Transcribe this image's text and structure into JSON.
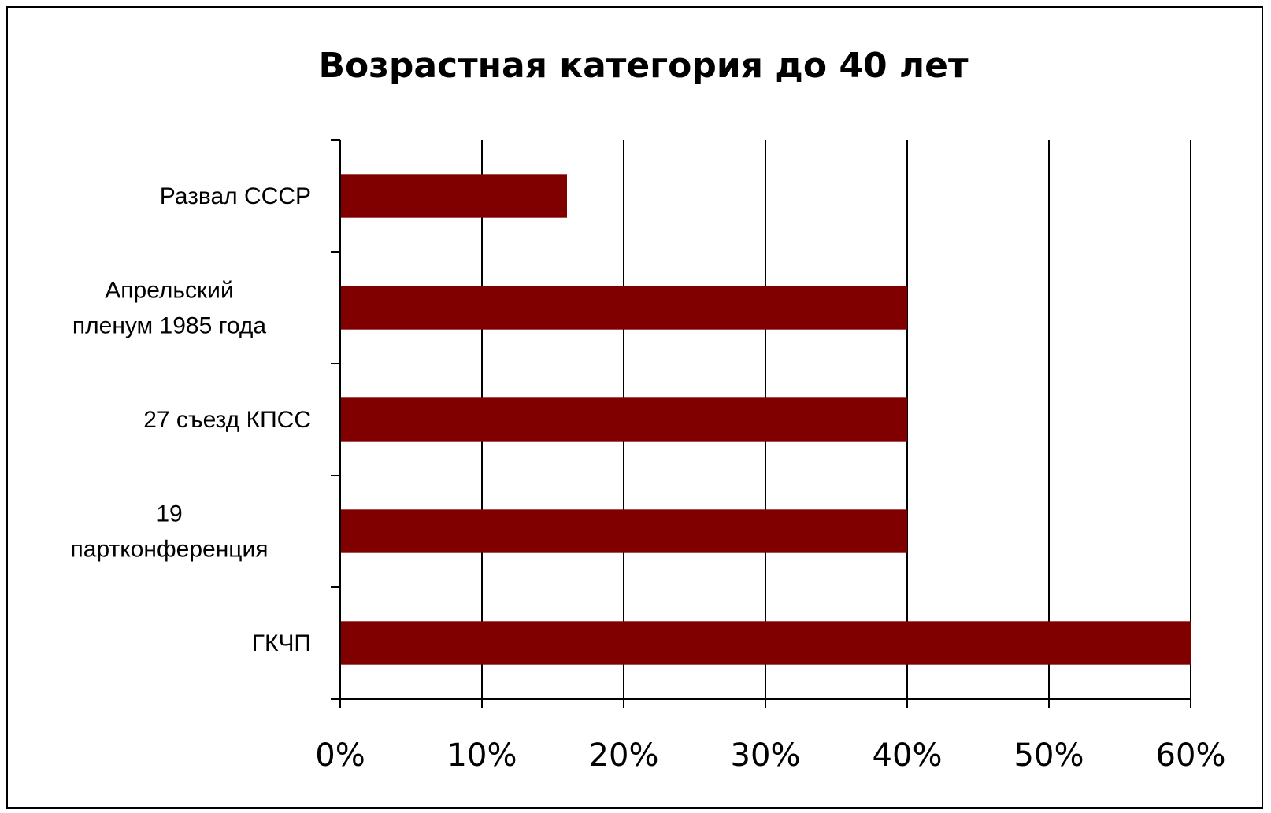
{
  "chart_data": {
    "type": "bar",
    "orientation": "horizontal",
    "title": "Возрастная категория до 40 лет",
    "categories": [
      [
        "Развал СССР"
      ],
      [
        "Апрельский",
        "пленум 1985 года"
      ],
      [
        "27 съезд КПСС"
      ],
      [
        "19",
        "партконференция"
      ],
      [
        "ГКЧП"
      ]
    ],
    "values": [
      16,
      40,
      40,
      40,
      60
    ],
    "xlim": [
      0,
      60
    ],
    "xticks": [
      0,
      10,
      20,
      30,
      40,
      50,
      60
    ],
    "tick_labels": [
      "0%",
      "10%",
      "20%",
      "30%",
      "40%",
      "50%",
      "60%"
    ],
    "grid": true,
    "legend": "none",
    "colors": {
      "bar": "#800000",
      "grid": "#000000",
      "background": "#ffffff"
    }
  }
}
